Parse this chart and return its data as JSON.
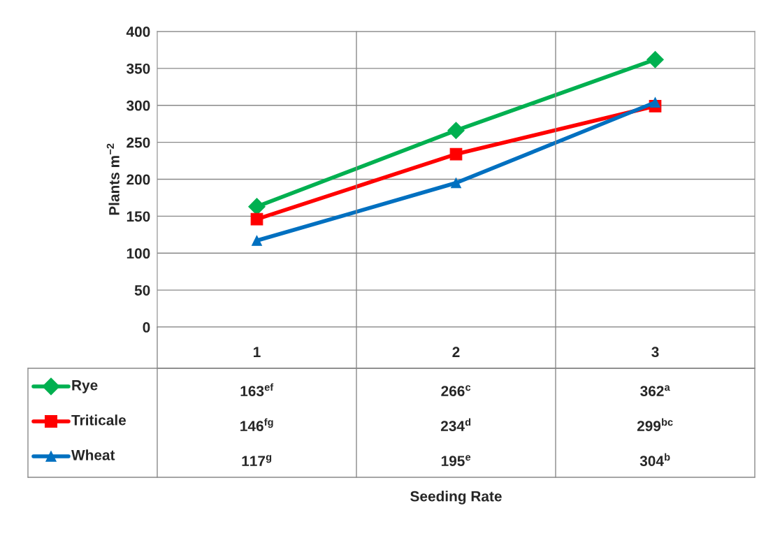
{
  "chart_data": {
    "type": "line",
    "annotations": [
      "Seeding Rate"
    ],
    "ylabel": "Plants m$^{−2}$",
    "categories": [
      "1",
      "2",
      "3"
    ],
    "ylim": [
      0,
      400
    ],
    "yticks": [
      0,
      50,
      100,
      150,
      200,
      250,
      300,
      350,
      400
    ],
    "grid": "y",
    "legend": "bottom left",
    "line_style": "solid",
    "series": [
      {
        "name": "Rye",
        "color": "#00b050",
        "marker": "diamond",
        "values": [
          163,
          266,
          362
        ],
        "value_labels": [
          "163$^{ef}$",
          "266$^{c}$",
          "362$^{a}$"
        ]
      },
      {
        "name": "Triticale",
        "color": "#ff0000",
        "marker": "square",
        "values": [
          146,
          234,
          299
        ],
        "value_labels": [
          "146$^{fg}$",
          "234$^{d}$",
          "299$^{bc}$"
        ]
      },
      {
        "name": "Wheat",
        "color": "#0070c0",
        "marker": "triangle",
        "values": [
          117,
          195,
          304
        ],
        "value_labels": [
          "117$^{g}$",
          "195$^{e}$",
          "304$^{b}$"
        ]
      }
    ]
  }
}
